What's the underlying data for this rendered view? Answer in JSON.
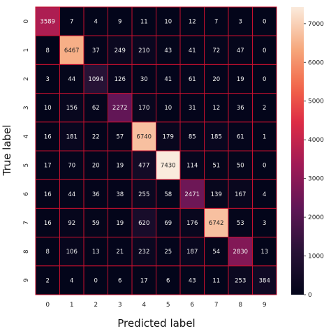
{
  "chart_data": {
    "type": "heatmap",
    "xlabel": "Predicted label",
    "ylabel": "True label",
    "x_tick_labels": [
      "0",
      "1",
      "2",
      "3",
      "4",
      "5",
      "6",
      "7",
      "8",
      "9"
    ],
    "y_tick_labels": [
      "0",
      "1",
      "2",
      "3",
      "4",
      "5",
      "6",
      "7",
      "8",
      "9"
    ],
    "matrix": [
      [
        3589,
        7,
        4,
        9,
        11,
        10,
        12,
        7,
        3,
        0
      ],
      [
        8,
        6467,
        37,
        249,
        210,
        43,
        41,
        72,
        47,
        0
      ],
      [
        3,
        44,
        1094,
        126,
        30,
        41,
        61,
        20,
        19,
        0
      ],
      [
        10,
        156,
        62,
        2272,
        170,
        10,
        31,
        12,
        36,
        2
      ],
      [
        16,
        181,
        22,
        57,
        6740,
        179,
        85,
        185,
        61,
        1
      ],
      [
        17,
        70,
        20,
        19,
        477,
        7430,
        114,
        51,
        50,
        0
      ],
      [
        16,
        44,
        36,
        38,
        255,
        58,
        2471,
        139,
        167,
        4
      ],
      [
        16,
        92,
        59,
        19,
        620,
        69,
        176,
        6742,
        53,
        3
      ],
      [
        8,
        106,
        13,
        21,
        232,
        25,
        187,
        54,
        2830,
        13
      ],
      [
        2,
        4,
        0,
        6,
        17,
        6,
        43,
        11,
        253,
        384
      ]
    ],
    "colorbar": {
      "range": [
        0,
        7430
      ],
      "ticks": [
        "0",
        "1000",
        "2000",
        "3000",
        "4000",
        "5000",
        "6000",
        "7000"
      ],
      "tick_values": [
        0,
        1000,
        2000,
        3000,
        4000,
        5000,
        6000,
        7000
      ],
      "colormap": "rocket"
    },
    "cell_border_color": "#c8102e",
    "grid": true
  }
}
